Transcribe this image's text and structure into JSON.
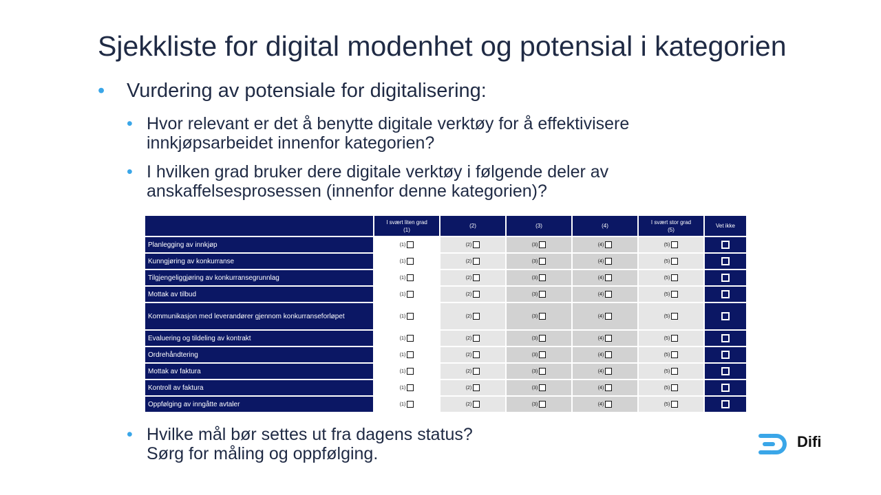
{
  "title": "Sjekkliste for digital modenhet og potensial i kategorien",
  "bullet_main": "Vurdering av potensiale for digitalisering:",
  "bullet_glyph": "•",
  "sub1": "Hvor relevant er det å benytte digitale verktøy for å effektivisere innkjøpsarbeidet innenfor kategorien?",
  "sub2": "I hvilken grad bruker dere digitale verktøy i følgende deler av anskaffelsesprosessen (innenfor denne kategorien)?",
  "sub3_line1": "Hvilke mål bør settes ut fra dagens status?",
  "sub3_line2": "Sørg for måling og oppfølging.",
  "table": {
    "headers": {
      "col1_line1": "I svært liten grad",
      "col1_line2": "(1)",
      "col2": "(2)",
      "col3": "(3)",
      "col4": "(4)",
      "col5_line1": "I svært stor grad",
      "col5_line2": "(5)",
      "col6": "Vet ikke"
    },
    "option_labels": [
      "(1)",
      "(2)",
      "(3)",
      "(4)",
      "(5)"
    ],
    "rows": [
      "Planlegging av innkjøp",
      "Kunngjøring av konkurranse",
      "Tilgjengeliggjøring av konkurransegrunnlag",
      "Mottak av tilbud",
      "Kommunikasjon med leverandører gjennom konkurranseforløpet",
      "Evaluering og tildeling av kontrakt",
      "Ordrehåndtering",
      "Mottak av faktura",
      "Kontroll av faktura",
      "Oppfølging av inngåtte avtaler"
    ]
  },
  "logo": {
    "wordmark": "Difi",
    "color": "#3aa6e8"
  },
  "colors": {
    "table_header": "#0b1764",
    "bullet": "#3aa6e8",
    "text": "#1f2a44"
  }
}
